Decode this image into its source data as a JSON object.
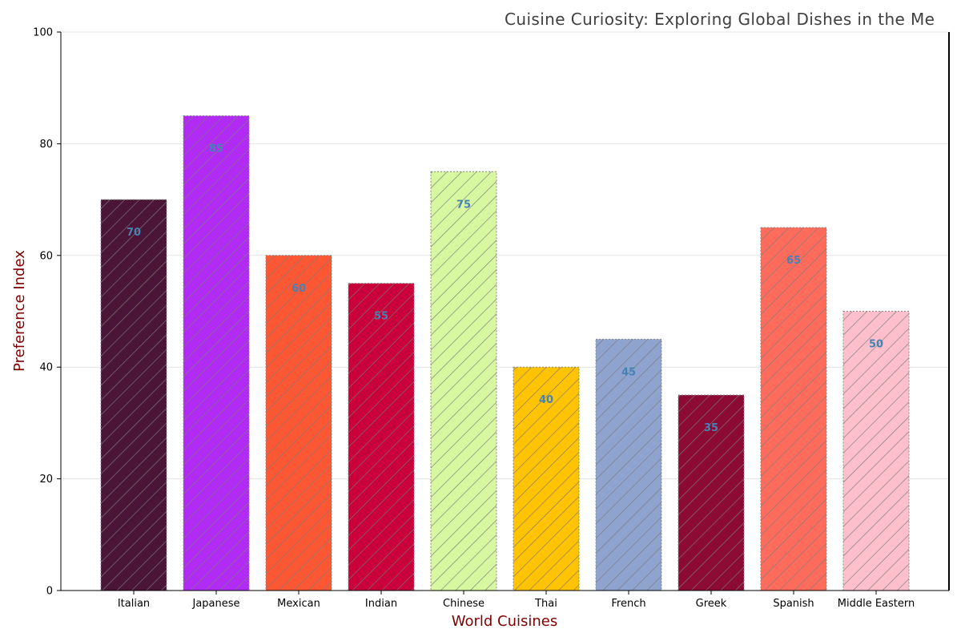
{
  "chart_data": {
    "type": "bar",
    "title": "Cuisine Curiosity: Exploring Global Dishes in the Me",
    "xlabel": "World Cuisines",
    "ylabel": "Preference Index",
    "categories": [
      "Italian",
      "Japanese",
      "Mexican",
      "Indian",
      "Chinese",
      "Thai",
      "French",
      "Greek",
      "Spanish",
      "Middle Eastern"
    ],
    "values": [
      70,
      85,
      60,
      55,
      75,
      40,
      45,
      35,
      65,
      50
    ],
    "colors": [
      "#4b1537",
      "#b22bf5",
      "#fe5733",
      "#c9003a",
      "#d7f8a1",
      "#ffc300",
      "#8fa3cf",
      "#8c0b35",
      "#ff6c5c",
      "#fdc0cb"
    ],
    "ylim": [
      0,
      100
    ],
    "yticks": [
      0,
      20,
      40,
      60,
      80,
      100
    ],
    "grid": true,
    "hatch": "/",
    "legend": "none"
  }
}
